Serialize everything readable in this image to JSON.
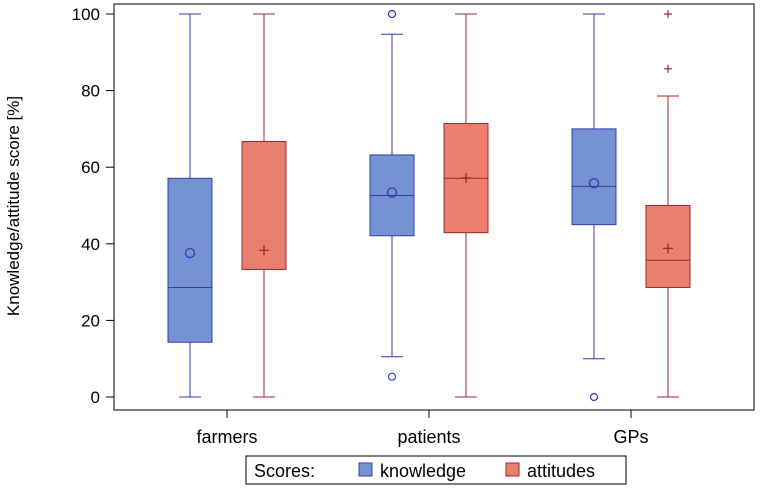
{
  "chart_data": {
    "type": "box",
    "title": "",
    "xlabel": "",
    "ylabel": "Knowledge/attitude score [%]",
    "ylim": [
      0,
      100
    ],
    "yticks": [
      0,
      20,
      40,
      60,
      80,
      100
    ],
    "categories": [
      "farmers",
      "patients",
      "GPs"
    ],
    "legend": {
      "title": "Scores:",
      "position": "bottom-center"
    },
    "series": [
      {
        "name": "knowledge",
        "fill": "#7592d2",
        "stroke": "#2f3eb0",
        "mean_marker": "circle",
        "boxes": [
          {
            "whisker_low": 0,
            "q1": 14.3,
            "median": 28.6,
            "q3": 57.1,
            "whisker_high": 100,
            "mean": 37.6,
            "outliers": []
          },
          {
            "whisker_low": 10.5,
            "q1": 42.1,
            "median": 52.6,
            "q3": 63.2,
            "whisker_high": 94.7,
            "mean": 53.4,
            "outliers": [
              5.3,
              100
            ]
          },
          {
            "whisker_low": 10,
            "q1": 45,
            "median": 55,
            "q3": 70,
            "whisker_high": 100,
            "mean": 55.8,
            "outliers": [
              0
            ]
          }
        ]
      },
      {
        "name": "attitudes",
        "fill": "#e8806d",
        "stroke": "#a3262a",
        "mean_marker": "plus",
        "boxes": [
          {
            "whisker_low": 0,
            "q1": 33.3,
            "median": 66.7,
            "q3": 66.7,
            "whisker_high": 100,
            "mean": 38.3,
            "outliers": []
          },
          {
            "whisker_low": 0,
            "q1": 42.9,
            "median": 57.1,
            "q3": 71.4,
            "whisker_high": 100,
            "mean": 57.2,
            "outliers": []
          },
          {
            "whisker_low": 0,
            "q1": 28.6,
            "median": 35.7,
            "q3": 50,
            "whisker_high": 78.6,
            "mean": 38.8,
            "outliers": [
              85.7,
              100
            ]
          }
        ]
      }
    ]
  }
}
